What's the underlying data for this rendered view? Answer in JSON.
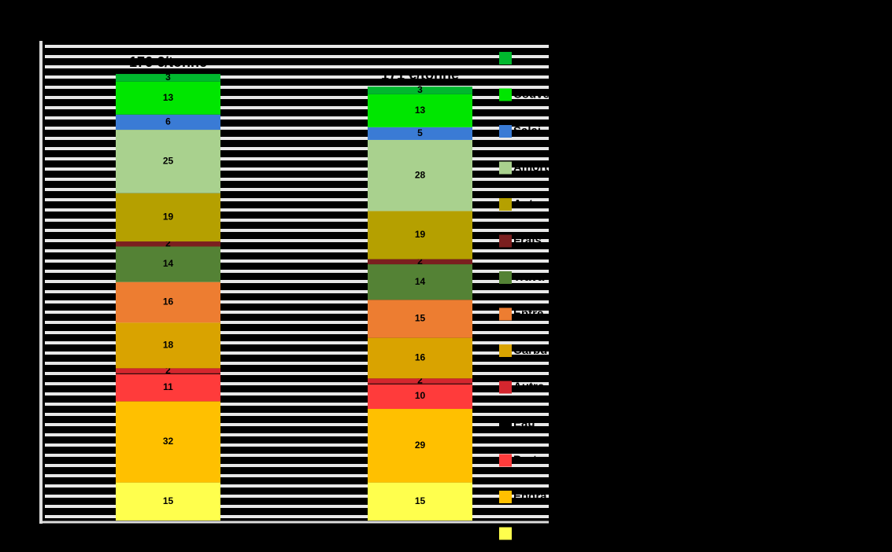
{
  "chart_data": {
    "type": "stacked_bar",
    "categories": [
      "176 €/tonne",
      "171 €/tonne"
    ],
    "series": [
      {
        "name": null,
        "color": "#ffff4d",
        "values": [
          15,
          15
        ]
      },
      {
        "name": "Engra",
        "color": "#ffc000",
        "values": [
          32,
          29
        ]
      },
      {
        "name": "Prote",
        "color": "#ff3b3b",
        "values": [
          11,
          10
        ]
      },
      {
        "name": "Eau",
        "color": "#000000",
        "values": [
          0,
          0
        ]
      },
      {
        "name": "Autre",
        "color": "#d4262e",
        "values": [
          2,
          2
        ]
      },
      {
        "name": "Carbu",
        "color": "#d9a300",
        "values": [
          18,
          16
        ]
      },
      {
        "name": "Entre",
        "color": "#ed7d31",
        "values": [
          16,
          15
        ]
      },
      {
        "name": "Trava",
        "color": "#548235",
        "values": [
          14,
          14
        ]
      },
      {
        "name": "Frais",
        "color": "#7b1f1f",
        "values": [
          2,
          2
        ]
      },
      {
        "name": "Autre",
        "color": "#b5a000",
        "values": [
          19,
          19
        ]
      },
      {
        "name": "Amort",
        "color": "#a9d18e",
        "values": [
          25,
          28
        ]
      },
      {
        "name": "Salai",
        "color": "#3a7bd5",
        "values": [
          6,
          5
        ]
      },
      {
        "name": "Couve",
        "color": "#00e600",
        "values": [
          13,
          13
        ]
      },
      {
        "name": "Taxe",
        "color": "#00b82e",
        "values": [
          3,
          3
        ]
      }
    ],
    "ylim": [
      0,
      185
    ]
  }
}
